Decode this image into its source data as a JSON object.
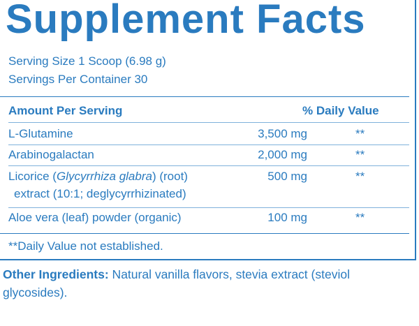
{
  "title": "Supplement Facts",
  "serving_size": "Serving Size 1 Scoop (6.98 g)",
  "servings_per_container": "Servings Per Container 30",
  "table": {
    "header_amount": "Amount Per Serving",
    "header_dv": "% Daily Value",
    "rows": [
      {
        "name": "L-Glutamine",
        "amount": "3,500 mg",
        "dv": "**"
      },
      {
        "name": "Arabinogalactan",
        "amount": "2,000 mg",
        "dv": "**"
      },
      {
        "name_pre": "Licorice (",
        "name_italic": "Glycyrrhiza glabra",
        "name_post": ") (root)",
        "name_line2": "extract (10:1; deglycyrrhizinated)",
        "amount": "500 mg",
        "dv": "**"
      },
      {
        "name": "Aloe vera (leaf) powder (organic)",
        "amount": "100 mg",
        "dv": "**"
      }
    ]
  },
  "footnote": "**Daily Value not established.",
  "other_ingredients": {
    "label": "Other Ingredients:",
    "text": " Natural vanilla flavors, stevia extract (steviol glycosides)."
  },
  "colors": {
    "text": "#2a7bbf",
    "rule": "#2a7bbf",
    "thin_rule": "#7fb1db"
  }
}
